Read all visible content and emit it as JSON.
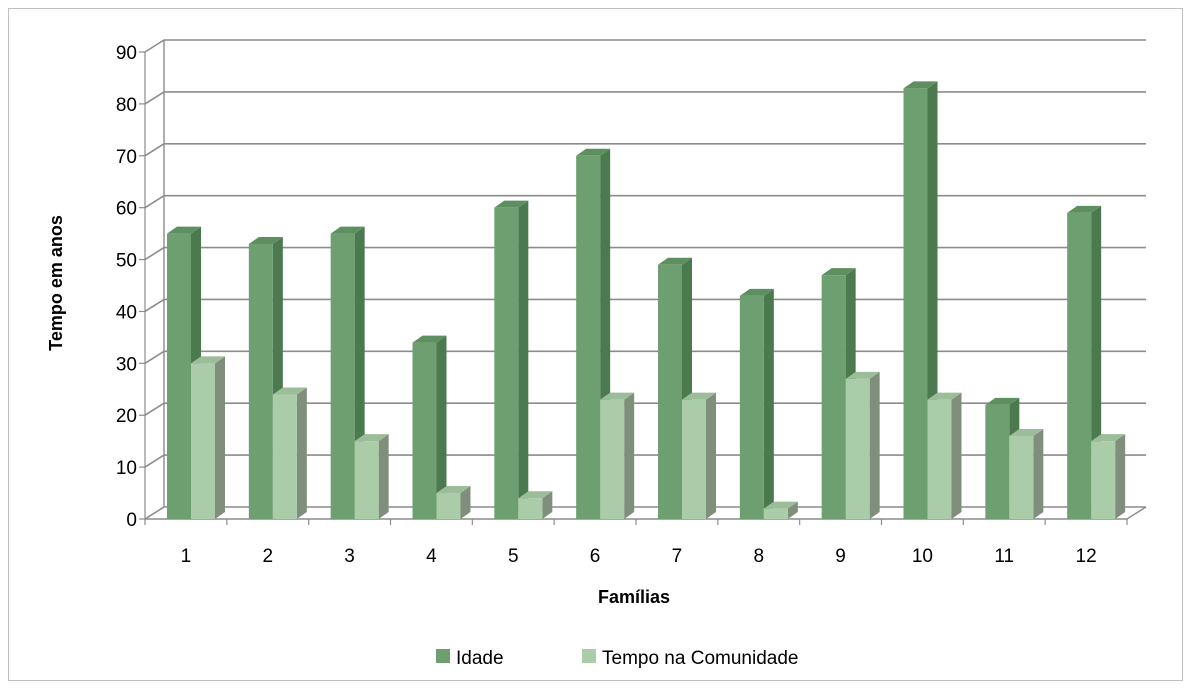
{
  "chart_data": {
    "type": "bar",
    "xlabel": "Famílias",
    "ylabel": "Tempo em  anos",
    "ylim": [
      0,
      90
    ],
    "yticks": [
      0,
      10,
      20,
      30,
      40,
      50,
      60,
      70,
      80,
      90
    ],
    "categories": [
      "1",
      "2",
      "3",
      "4",
      "5",
      "6",
      "7",
      "8",
      "9",
      "10",
      "11",
      "12"
    ],
    "series": [
      {
        "name": "Idade",
        "color": "#6e9f70",
        "values": [
          55,
          53,
          55,
          34,
          60,
          70,
          49,
          43,
          47,
          83,
          22,
          59
        ]
      },
      {
        "name": "Tempo na Comunidade",
        "color": "#abcca9",
        "values": [
          30,
          24,
          15,
          5,
          4,
          23,
          23,
          2,
          27,
          23,
          16,
          15
        ]
      }
    ],
    "grid": true,
    "style": "3d-clustered-column",
    "legend_position": "bottom"
  }
}
